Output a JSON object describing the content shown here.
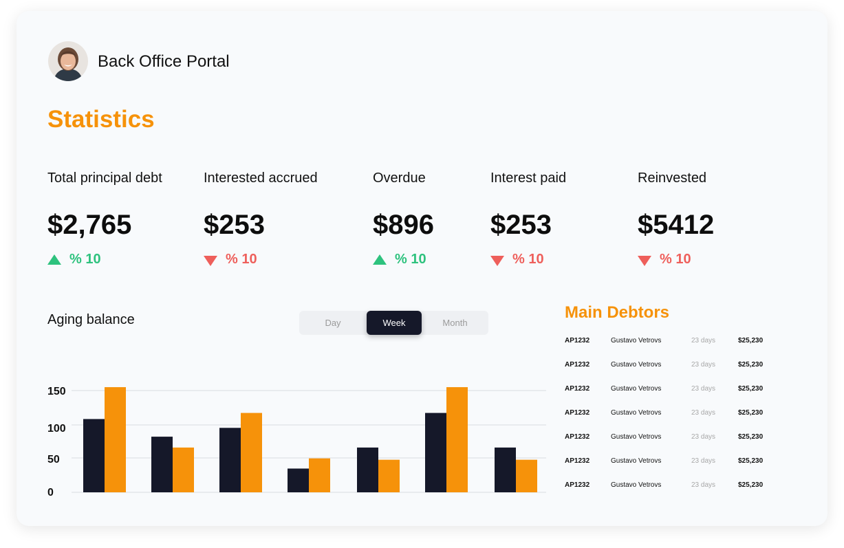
{
  "header": {
    "portal_title": "Back Office Portal"
  },
  "page": {
    "title": "Statistics"
  },
  "stats": [
    {
      "label": "Total principal debt",
      "value": "$2,765",
      "change": "% 10",
      "direction": "up"
    },
    {
      "label": "Interested accrued",
      "value": "$253",
      "change": "% 10",
      "direction": "down"
    },
    {
      "label": "Overdue",
      "value": "$896",
      "change": "% 10",
      "direction": "up"
    },
    {
      "label": "Interest paid",
      "value": "$253",
      "change": "% 10",
      "direction": "down"
    },
    {
      "label": "Reinvested",
      "value": "$5412",
      "change": "% 10",
      "direction": "down"
    }
  ],
  "colors": {
    "accent": "#f6920a",
    "dark": "#151829",
    "up": "#2ec27e",
    "down": "#ee5f5b"
  },
  "chart": {
    "title": "Aging balance",
    "toggle": {
      "options": [
        "Day",
        "Week",
        "Month"
      ],
      "selected": "Week"
    }
  },
  "chart_data": {
    "type": "bar",
    "title": "Aging balance",
    "xlabel": "",
    "ylabel": "",
    "ylim": [
      0,
      150
    ],
    "yticks": [
      "150",
      "100",
      "50",
      "0"
    ],
    "grid": true,
    "series": [
      {
        "values": [
          108,
          82,
          95,
          35,
          66,
          117,
          66
        ],
        "color": "#151829"
      },
      {
        "values": [
          155,
          66,
          117,
          50,
          48,
          155,
          48
        ],
        "color": "#f6920a"
      }
    ]
  },
  "debtors": {
    "title": "Main Debtors",
    "rows": [
      {
        "id": "AP1232",
        "name": "Gustavo Vetrovs",
        "days": "23 days",
        "amount": "$25,230"
      },
      {
        "id": "AP1232",
        "name": "Gustavo Vetrovs",
        "days": "23 days",
        "amount": "$25,230"
      },
      {
        "id": "AP1232",
        "name": "Gustavo Vetrovs",
        "days": "23 days",
        "amount": "$25,230"
      },
      {
        "id": "AP1232",
        "name": "Gustavo Vetrovs",
        "days": "23 days",
        "amount": "$25,230"
      },
      {
        "id": "AP1232",
        "name": "Gustavo Vetrovs",
        "days": "23 days",
        "amount": "$25,230"
      },
      {
        "id": "AP1232",
        "name": "Gustavo Vetrovs",
        "days": "23 days",
        "amount": "$25,230"
      },
      {
        "id": "AP1232",
        "name": "Gustavo Vetrovs",
        "days": "23 days",
        "amount": "$25,230"
      }
    ]
  }
}
